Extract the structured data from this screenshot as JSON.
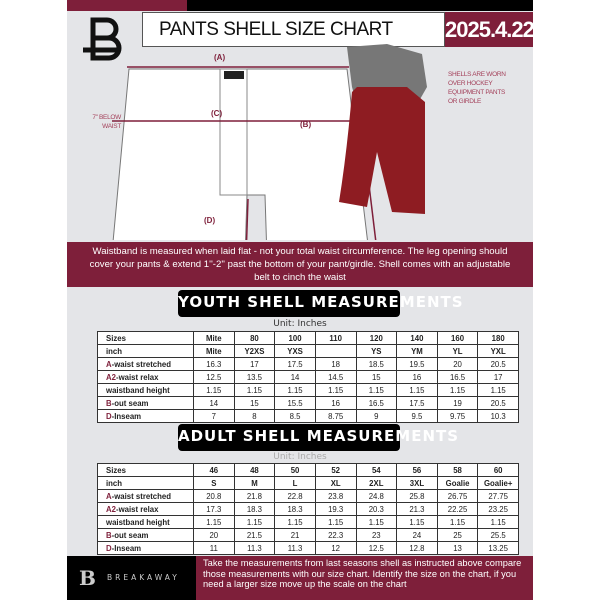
{
  "header": {
    "title": "PANTS SHELL SIZE CHART",
    "date": "2025.4.22",
    "logo": "B"
  },
  "diagram": {
    "label_a": "(A)",
    "label_b": "(B)",
    "label_c": "(C)",
    "label_d": "(D)",
    "below_waist": "7'' BELOW WAIST",
    "shell_note": "SHELLS ARE WORN OVER HOCKEY EQUIPMENT PANTS OR GIRDLE"
  },
  "banner": {
    "text": "Waistband is measured when laid flat - not your total waist circumference. The leg opening should cover your pants & extend 1''-2'' past the bottom of your pant/girdle. Shell comes with an adjustable belt to cinch the waist"
  },
  "youth": {
    "title": "YOUTH SHELL MEASUREMENTS",
    "unit": "Unit: Inches",
    "rows": [
      {
        "prefix": "",
        "label": "Sizes",
        "values": [
          "Mite",
          "80",
          "100",
          "110",
          "120",
          "140",
          "160",
          "180"
        ]
      },
      {
        "prefix": "",
        "label": "inch",
        "values": [
          "Mite",
          "Y2XS",
          "YXS",
          "",
          "YS",
          "YM",
          "YL",
          "YXL"
        ]
      },
      {
        "prefix": "A",
        "label": "-waist stretched",
        "values": [
          "16.3",
          "17",
          "17.5",
          "18",
          "18.5",
          "19.5",
          "20",
          "20.5"
        ]
      },
      {
        "prefix": "A2",
        "label": "-waist relax",
        "values": [
          "12.5",
          "13.5",
          "14",
          "14.5",
          "15",
          "16",
          "16.5",
          "17"
        ]
      },
      {
        "prefix": "",
        "label": "waistband height",
        "values": [
          "1.15",
          "1.15",
          "1.15",
          "1.15",
          "1.15",
          "1.15",
          "1.15",
          "1.15"
        ]
      },
      {
        "prefix": "B",
        "label": "-out seam",
        "values": [
          "14",
          "15",
          "15.5",
          "16",
          "16.5",
          "17.5",
          "19",
          "20.5"
        ]
      },
      {
        "prefix": "D",
        "label": "-Inseam",
        "values": [
          "7",
          "8",
          "8.5",
          "8.75",
          "9",
          "9.5",
          "9.75",
          "10.3"
        ]
      }
    ]
  },
  "adult": {
    "title": "ADULT SHELL MEASUREMENTS",
    "unit": "Unit: Inches",
    "rows": [
      {
        "prefix": "",
        "label": "Sizes",
        "values": [
          "46",
          "48",
          "50",
          "52",
          "54",
          "56",
          "58",
          "60"
        ]
      },
      {
        "prefix": "",
        "label": "inch",
        "values": [
          "S",
          "M",
          "L",
          "XL",
          "2XL",
          "3XL",
          "Goalie",
          "Goalie+"
        ]
      },
      {
        "prefix": "A",
        "label": "-waist stretched",
        "values": [
          "20.8",
          "21.8",
          "22.8",
          "23.8",
          "24.8",
          "25.8",
          "26.75",
          "27.75"
        ]
      },
      {
        "prefix": "A2",
        "label": "-waist relax",
        "values": [
          "17.3",
          "18.3",
          "18.3",
          "19.3",
          "20.3",
          "21.3",
          "22.25",
          "23.25"
        ]
      },
      {
        "prefix": "",
        "label": "waistband height",
        "values": [
          "1.15",
          "1.15",
          "1.15",
          "1.15",
          "1.15",
          "1.15",
          "1.15",
          "1.15"
        ]
      },
      {
        "prefix": "B",
        "label": "-out seam",
        "values": [
          "20",
          "21.5",
          "21",
          "22.3",
          "23",
          "24",
          "25",
          "25.5"
        ]
      },
      {
        "prefix": "D",
        "label": "-Inseam",
        "values": [
          "11",
          "11.3",
          "11.3",
          "12",
          "12.5",
          "12.8",
          "13",
          "13.25"
        ]
      }
    ]
  },
  "footer": {
    "brand": "BREAKAWAY",
    "logo": "B",
    "text": "Take the measurements from last seasons shell as instructed above compare those measurements  with our size chart. Identify the size on the chart, if you need a larger size move up the scale on the chart"
  },
  "colors": {
    "accent": "#7e1f3a",
    "background": "#e4e5e8"
  }
}
